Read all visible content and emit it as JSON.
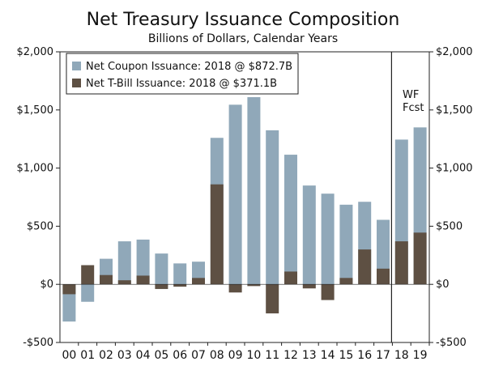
{
  "chart_data": {
    "type": "bar",
    "stacked": true,
    "title": "Net Treasury Issuance Composition",
    "subtitle": "Billions of Dollars, Calendar Years",
    "categories": [
      "00",
      "01",
      "02",
      "03",
      "04",
      "05",
      "06",
      "07",
      "08",
      "09",
      "10",
      "11",
      "12",
      "13",
      "14",
      "15",
      "16",
      "17",
      "18",
      "19"
    ],
    "series": [
      {
        "name": "Net Coupon Issuance: 2018 @ $872.7B",
        "color": "#90a8b9",
        "totals": [
          -320,
          -150,
          220,
          370,
          385,
          265,
          180,
          195,
          1260,
          1545,
          1610,
          1325,
          1115,
          850,
          780,
          685,
          710,
          555,
          1245,
          1350
        ]
      },
      {
        "name": "Net T-Bill Issuance: 2018 @ $371.1B",
        "color": "#5e5043",
        "values": [
          -85,
          165,
          80,
          35,
          75,
          -40,
          -20,
          55,
          860,
          -70,
          -15,
          -250,
          110,
          -35,
          -135,
          55,
          300,
          135,
          370,
          445
        ]
      }
    ],
    "ylim": [
      -500,
      2000
    ],
    "yticks": [
      -500,
      0,
      500,
      1000,
      1500,
      2000
    ],
    "ytick_labels": [
      "-$500",
      "$0",
      "$500",
      "$1,000",
      "$1,500",
      "$2,000"
    ],
    "forecast_start_index": 18,
    "annotation": [
      "WF",
      "Fcst"
    ],
    "legend_position": "top-left"
  }
}
